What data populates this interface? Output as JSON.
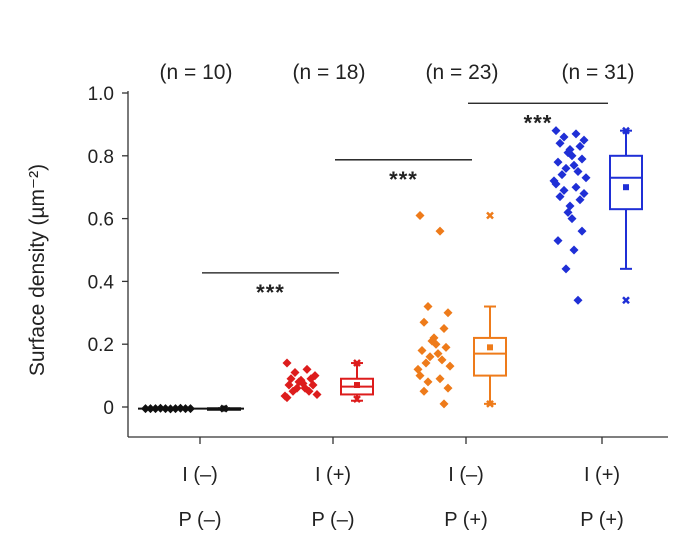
{
  "chart_data": {
    "type": "box-scatter",
    "title": "",
    "ylabel": "Surface density (µm⁻²)",
    "ylim": [
      -0.1,
      1.0
    ],
    "yticks": [
      {
        "value": 0,
        "label": "0"
      },
      {
        "value": 0.2,
        "label": "0.2"
      },
      {
        "value": 0.4,
        "label": "0.4"
      },
      {
        "value": 0.6,
        "label": "0.6"
      },
      {
        "value": 0.8,
        "label": "0.8"
      },
      {
        "value": 1.0,
        "label": "1.0"
      }
    ],
    "groups": [
      {
        "label_top": "I (–)",
        "label_bottom": "P (–)",
        "n_label": "(n = 10)",
        "n": 10,
        "color": "#111111",
        "points": [
          -0.005,
          -0.005,
          -0.005,
          -0.004,
          -0.005,
          -0.006,
          -0.005,
          -0.004,
          -0.005,
          -0.005
        ],
        "box": {
          "whisker_low": -0.006,
          "q1": -0.006,
          "median": -0.005,
          "q3": -0.004,
          "whisker_high": -0.004,
          "mean": -0.005,
          "min": -0.005,
          "max": -0.005
        }
      },
      {
        "label_top": "I (+)",
        "label_bottom": "P (–)",
        "n_label": "(n = 18)",
        "n": 18,
        "color": "#dd1c1c",
        "points": [
          0.14,
          0.12,
          0.11,
          0.1,
          0.09,
          0.09,
          0.085,
          0.08,
          0.075,
          0.07,
          0.07,
          0.06,
          0.06,
          0.05,
          0.05,
          0.04,
          0.035,
          0.03
        ],
        "box": {
          "whisker_low": 0.02,
          "q1": 0.04,
          "median": 0.065,
          "q3": 0.09,
          "whisker_high": 0.14,
          "mean": 0.07,
          "min": 0.025,
          "max": 0.14
        }
      },
      {
        "label_top": "I (–)",
        "label_bottom": "P (+)",
        "n_label": "(n = 23)",
        "n": 23,
        "color": "#ee7b1a",
        "points": [
          0.61,
          0.56,
          0.32,
          0.3,
          0.27,
          0.25,
          0.22,
          0.21,
          0.2,
          0.19,
          0.18,
          0.17,
          0.16,
          0.15,
          0.14,
          0.13,
          0.12,
          0.1,
          0.09,
          0.08,
          0.06,
          0.05,
          0.01
        ],
        "box": {
          "whisker_low": 0.01,
          "q1": 0.1,
          "median": 0.17,
          "q3": 0.22,
          "whisker_high": 0.32,
          "mean": 0.19,
          "min": 0.01,
          "max": 0.61
        }
      },
      {
        "label_top": "I (+)",
        "label_bottom": "P (+)",
        "n_label": "(n = 31)",
        "n": 31,
        "color": "#1f2fd6",
        "points": [
          0.88,
          0.87,
          0.86,
          0.85,
          0.84,
          0.83,
          0.82,
          0.81,
          0.8,
          0.79,
          0.78,
          0.77,
          0.76,
          0.75,
          0.74,
          0.73,
          0.72,
          0.71,
          0.7,
          0.69,
          0.68,
          0.67,
          0.66,
          0.64,
          0.62,
          0.6,
          0.56,
          0.53,
          0.5,
          0.44,
          0.34
        ],
        "box": {
          "whisker_low": 0.44,
          "q1": 0.63,
          "median": 0.73,
          "q3": 0.8,
          "whisker_high": 0.88,
          "mean": 0.7,
          "min": 0.34,
          "max": 0.88
        }
      }
    ],
    "significance": [
      {
        "from": 0,
        "to": 1,
        "y": 0.44,
        "label": "***"
      },
      {
        "from": 1,
        "to": 2,
        "y": 0.8,
        "label": "***"
      },
      {
        "from": 2,
        "to": 3,
        "y": 0.98,
        "label": "***"
      }
    ],
    "grid": false,
    "legend": "none"
  }
}
